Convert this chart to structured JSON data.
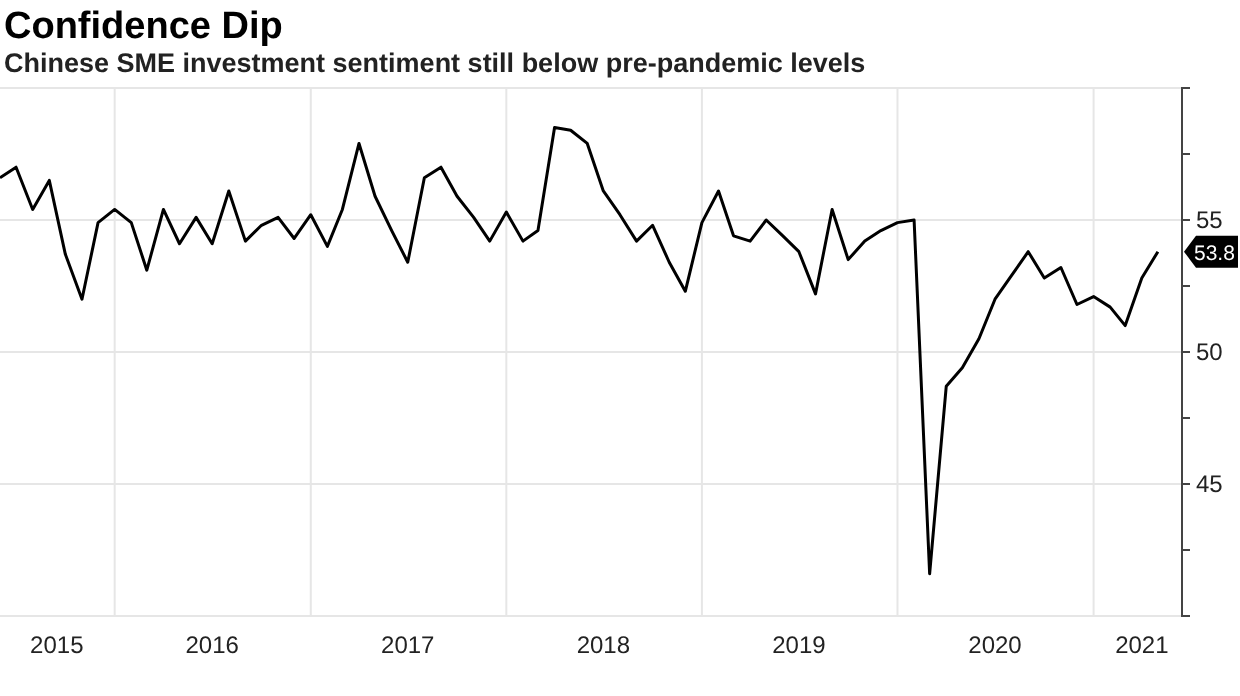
{
  "chart_data": {
    "type": "line",
    "title": "Confidence Dip",
    "subtitle": "Chinese SME investment sentiment still below pre-pandemic levels",
    "x": [
      "2015-06",
      "2015-07",
      "2015-08",
      "2015-09",
      "2015-10",
      "2015-11",
      "2015-12",
      "2016-01",
      "2016-02",
      "2016-03",
      "2016-04",
      "2016-05",
      "2016-06",
      "2016-07",
      "2016-08",
      "2016-09",
      "2016-10",
      "2016-11",
      "2016-12",
      "2017-01",
      "2017-02",
      "2017-03",
      "2017-04",
      "2017-05",
      "2017-06",
      "2017-07",
      "2017-08",
      "2017-09",
      "2017-10",
      "2017-11",
      "2017-12",
      "2018-01",
      "2018-02",
      "2018-03",
      "2018-04",
      "2018-05",
      "2018-06",
      "2018-07",
      "2018-08",
      "2018-09",
      "2018-10",
      "2018-11",
      "2018-12",
      "2019-01",
      "2019-02",
      "2019-03",
      "2019-04",
      "2019-05",
      "2019-06",
      "2019-07",
      "2019-08",
      "2019-09",
      "2019-10",
      "2019-11",
      "2019-12",
      "2020-01",
      "2020-02",
      "2020-03",
      "2020-04",
      "2020-05",
      "2020-06",
      "2020-07",
      "2020-08",
      "2020-09",
      "2020-10",
      "2020-11",
      "2020-12",
      "2021-01",
      "2021-02",
      "2021-03",
      "2021-04",
      "2021-05"
    ],
    "series": [
      {
        "color": "#000000",
        "values": [
          56.6,
          57.0,
          55.4,
          56.5,
          53.7,
          52.0,
          54.9,
          55.4,
          54.9,
          53.1,
          55.4,
          54.1,
          55.1,
          54.1,
          56.1,
          54.2,
          54.8,
          55.1,
          54.3,
          55.2,
          54.0,
          55.4,
          57.9,
          55.9,
          54.6,
          53.4,
          56.6,
          57.0,
          55.9,
          55.1,
          54.2,
          55.3,
          54.2,
          54.6,
          58.5,
          58.4,
          57.9,
          56.1,
          55.2,
          54.2,
          54.8,
          53.4,
          52.3,
          54.9,
          56.1,
          54.4,
          54.2,
          55.0,
          54.4,
          53.8,
          52.2,
          55.4,
          53.5,
          54.2,
          54.6,
          54.9,
          55.0,
          41.6,
          48.7,
          49.4,
          50.5,
          52.0,
          52.9,
          53.8,
          52.8,
          53.2,
          51.8,
          52.1,
          51.7,
          51.0,
          52.8,
          53.8
        ],
        "value_labels": [
          null,
          null,
          null,
          null,
          null,
          null,
          null,
          null,
          null,
          null,
          null,
          null,
          null,
          null,
          null,
          null,
          null,
          null,
          null,
          null,
          null,
          null,
          null,
          null,
          null,
          null,
          null,
          null,
          null,
          null,
          null,
          null,
          null,
          null,
          null,
          null,
          null,
          null,
          null,
          null,
          null,
          null,
          null,
          null,
          null,
          null,
          null,
          null,
          null,
          null,
          null,
          null,
          null,
          null,
          null,
          null,
          null,
          null,
          null,
          null,
          null,
          null,
          null,
          null,
          null,
          null,
          null,
          null,
          null,
          null,
          null,
          "53.8"
        ]
      }
    ],
    "xlim": [
      "2015-06-01",
      "2021-06-15"
    ],
    "xticks": [
      {
        "value": "2015-09-15",
        "label": "2015"
      },
      {
        "value": "2016-01-01",
        "label": null
      },
      {
        "value": "2016-07-01",
        "label": "2016"
      },
      {
        "value": "2017-01-01",
        "label": null
      },
      {
        "value": "2017-07-01",
        "label": "2017"
      },
      {
        "value": "2018-01-01",
        "label": null
      },
      {
        "value": "2018-07-01",
        "label": "2018"
      },
      {
        "value": "2019-01-01",
        "label": null
      },
      {
        "value": "2019-07-01",
        "label": "2019"
      },
      {
        "value": "2020-01-01",
        "label": null
      },
      {
        "value": "2020-07-01",
        "label": "2020"
      },
      {
        "value": "2021-01-01",
        "label": null
      },
      {
        "value": "2021-04-01",
        "label": "2021"
      }
    ],
    "ylim": [
      40,
      60
    ],
    "yticks": [
      {
        "value": 40,
        "label": null
      },
      {
        "value": 42.5,
        "label": null
      },
      45,
      {
        "value": 47.5,
        "label": null
      },
      50,
      {
        "value": 52.5,
        "label": null
      },
      55,
      {
        "value": 57.5,
        "label": null
      },
      {
        "value": 60,
        "label": null
      }
    ],
    "grid": true,
    "marker": "none",
    "line_style": "solid"
  }
}
